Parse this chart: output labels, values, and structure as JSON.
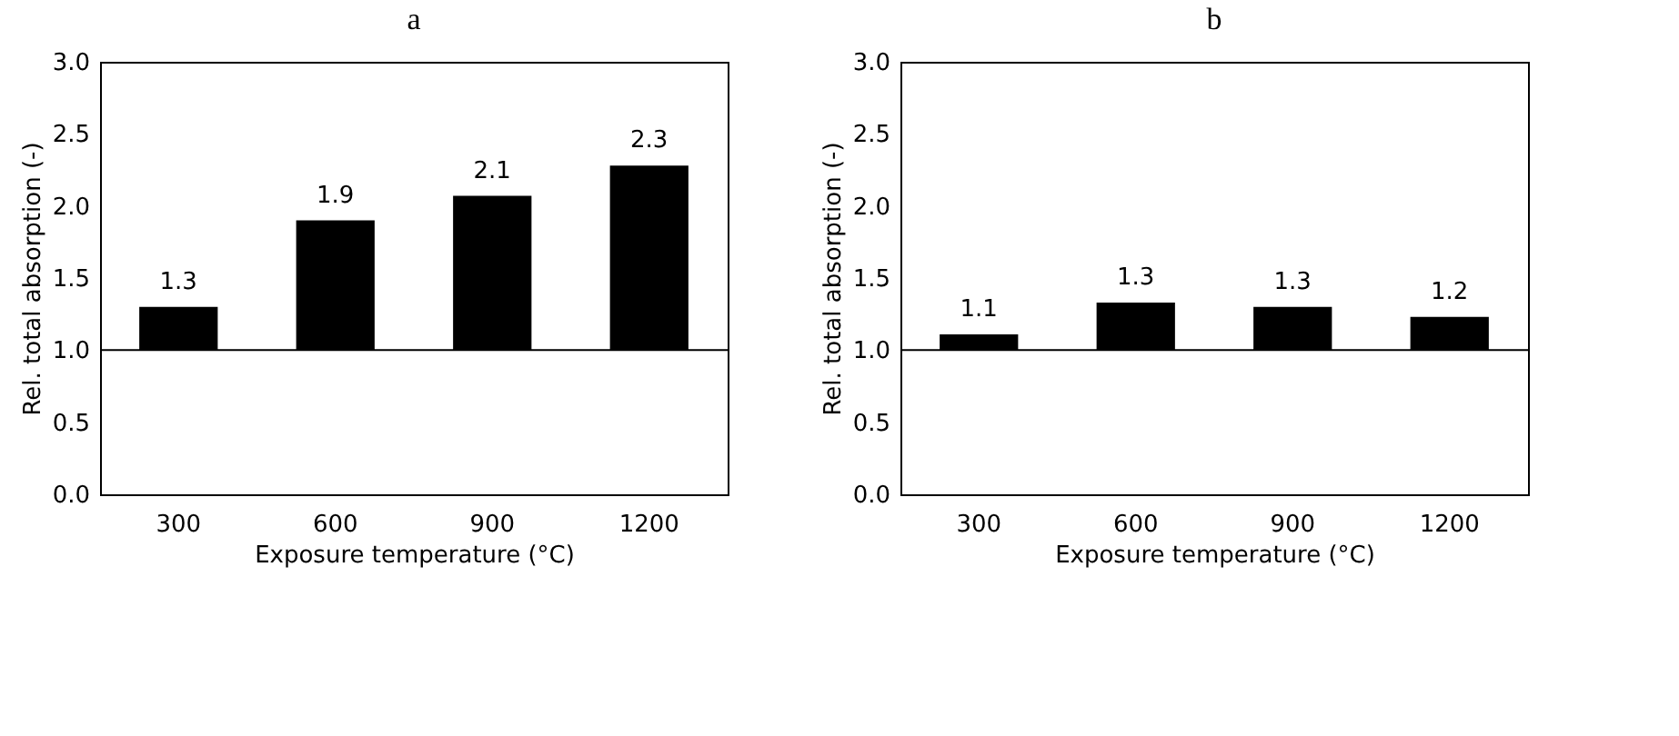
{
  "chart_data": [
    {
      "type": "bar",
      "title": "a",
      "xlabel": "Exposure temperature (°C)",
      "ylabel": "Rel. total absorption (-)",
      "categories": [
        "300",
        "600",
        "900",
        "1200"
      ],
      "base": [
        1,
        1,
        1,
        1
      ],
      "values": [
        0.3,
        0.9,
        1.07,
        1.28
      ],
      "value_labels": [
        "1.3",
        "1.9",
        "2.1",
        "2.3"
      ],
      "color": "#000000",
      "ylim": [
        0,
        3
      ],
      "yticks": [
        {
          "value": 0,
          "label": "0.0"
        },
        {
          "value": 0.5,
          "label": "0.5"
        },
        {
          "value": 1,
          "label": "1.0"
        },
        {
          "value": 1.5,
          "label": "1.5"
        },
        {
          "value": 2,
          "label": "2.0"
        },
        {
          "value": 2.5,
          "label": "2.5"
        },
        {
          "value": 3,
          "label": "3.0"
        }
      ],
      "ref_lines": [
        {
          "axis": "y",
          "value": 1,
          "color": "#000000"
        }
      ],
      "grid": false
    },
    {
      "type": "bar",
      "title": "b",
      "xlabel": "Exposure temperature (°C)",
      "ylabel": "Rel. total absorption (-)",
      "categories": [
        "300",
        "600",
        "900",
        "1200"
      ],
      "base": [
        1,
        1,
        1,
        1
      ],
      "values": [
        0.11,
        0.33,
        0.3,
        0.23
      ],
      "value_labels": [
        "1.1",
        "1.3",
        "1.3",
        "1.2"
      ],
      "color": "#000000",
      "ylim": [
        0,
        3
      ],
      "yticks": [
        {
          "value": 0,
          "label": "0.0"
        },
        {
          "value": 0.5,
          "label": "0.5"
        },
        {
          "value": 1,
          "label": "1.0"
        },
        {
          "value": 1.5,
          "label": "1.5"
        },
        {
          "value": 2,
          "label": "2.0"
        },
        {
          "value": 2.5,
          "label": "2.5"
        },
        {
          "value": 3,
          "label": "3.0"
        }
      ],
      "ref_lines": [
        {
          "axis": "y",
          "value": 1,
          "color": "#000000"
        }
      ],
      "grid": false
    }
  ]
}
